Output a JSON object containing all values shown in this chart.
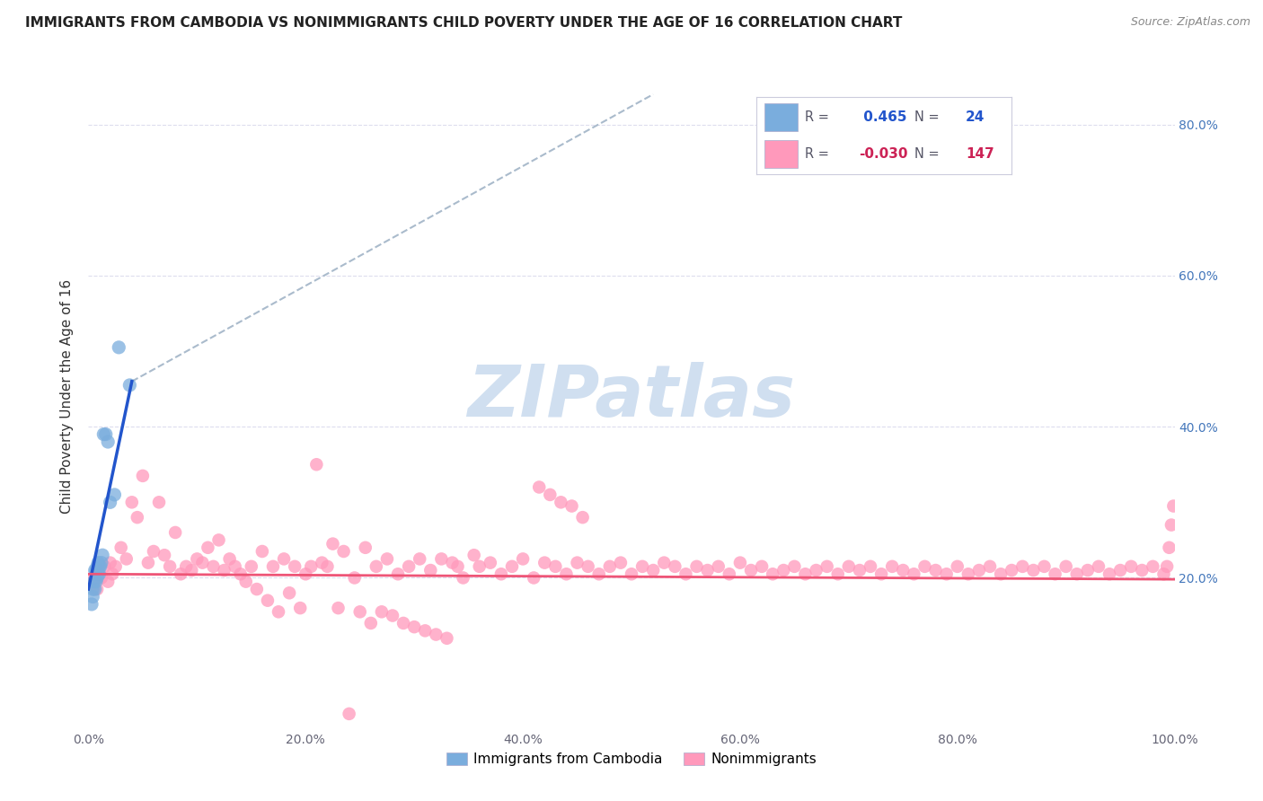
{
  "title": "IMMIGRANTS FROM CAMBODIA VS NONIMMIGRANTS CHILD POVERTY UNDER THE AGE OF 16 CORRELATION CHART",
  "source": "Source: ZipAtlas.com",
  "ylabel": "Child Poverty Under the Age of 16",
  "xlim": [
    0,
    1.0
  ],
  "ylim": [
    0,
    0.88
  ],
  "xticks": [
    0.0,
    0.2,
    0.4,
    0.6,
    0.8,
    1.0
  ],
  "xtick_labels": [
    "0.0%",
    "20.0%",
    "40.0%",
    "60.0%",
    "80.0%",
    "100.0%"
  ],
  "yticks_right": [
    0.2,
    0.4,
    0.6,
    0.8
  ],
  "ytick_labels_right": [
    "20.0%",
    "40.0%",
    "60.0%",
    "80.0%"
  ],
  "R_blue": 0.465,
  "N_blue": 24,
  "R_pink": -0.03,
  "N_pink": 147,
  "blue_scatter_color": "#7AADDD",
  "pink_scatter_color": "#FF99BB",
  "blue_line_color": "#2255CC",
  "pink_line_color": "#EE5577",
  "dashed_line_color": "#AABBCC",
  "legend_text_color_blue": "#2255CC",
  "legend_text_color_pink": "#CC2255",
  "legend_text_color_label": "#555566",
  "watermark_text": "ZIPatlas",
  "watermark_color": "#D0DFF0",
  "grid_color": "#DDDDEE",
  "title_color": "#222222",
  "source_color": "#888888",
  "ylabel_color": "#333333",
  "tick_label_color": "#666677",
  "right_tick_color": "#4477BB",
  "blue_scatter_x": [
    0.003,
    0.004,
    0.004,
    0.005,
    0.006,
    0.006,
    0.007,
    0.007,
    0.008,
    0.008,
    0.009,
    0.009,
    0.01,
    0.01,
    0.011,
    0.012,
    0.013,
    0.014,
    0.016,
    0.018,
    0.02,
    0.024,
    0.028,
    0.038
  ],
  "blue_scatter_y": [
    0.165,
    0.175,
    0.185,
    0.195,
    0.185,
    0.21,
    0.195,
    0.21,
    0.2,
    0.215,
    0.205,
    0.22,
    0.215,
    0.205,
    0.215,
    0.22,
    0.23,
    0.39,
    0.39,
    0.38,
    0.3,
    0.31,
    0.505,
    0.455
  ],
  "blue_line_x0": 0.0,
  "blue_line_y0": 0.185,
  "blue_line_x1": 0.04,
  "blue_line_y1": 0.46,
  "dashed_line_x0": 0.04,
  "dashed_line_y0": 0.46,
  "dashed_line_x1": 0.52,
  "dashed_line_y1": 0.84,
  "pink_line_x0": 0.0,
  "pink_line_y0": 0.205,
  "pink_line_x1": 1.0,
  "pink_line_y1": 0.198,
  "pink_scatter_x": [
    0.005,
    0.008,
    0.01,
    0.012,
    0.015,
    0.018,
    0.02,
    0.022,
    0.025,
    0.03,
    0.035,
    0.04,
    0.045,
    0.05,
    0.06,
    0.065,
    0.07,
    0.08,
    0.09,
    0.1,
    0.11,
    0.12,
    0.13,
    0.14,
    0.15,
    0.16,
    0.17,
    0.18,
    0.19,
    0.2,
    0.215,
    0.225,
    0.235,
    0.245,
    0.255,
    0.265,
    0.275,
    0.285,
    0.295,
    0.305,
    0.315,
    0.325,
    0.335,
    0.34,
    0.345,
    0.355,
    0.36,
    0.37,
    0.38,
    0.39,
    0.4,
    0.41,
    0.42,
    0.43,
    0.44,
    0.45,
    0.46,
    0.47,
    0.48,
    0.49,
    0.5,
    0.51,
    0.52,
    0.53,
    0.54,
    0.55,
    0.56,
    0.57,
    0.58,
    0.59,
    0.6,
    0.61,
    0.62,
    0.63,
    0.64,
    0.65,
    0.66,
    0.67,
    0.68,
    0.69,
    0.7,
    0.71,
    0.72,
    0.73,
    0.74,
    0.75,
    0.76,
    0.77,
    0.78,
    0.79,
    0.8,
    0.81,
    0.82,
    0.83,
    0.84,
    0.85,
    0.86,
    0.87,
    0.88,
    0.89,
    0.9,
    0.91,
    0.92,
    0.93,
    0.94,
    0.95,
    0.96,
    0.97,
    0.98,
    0.99,
    0.993,
    0.995,
    0.997,
    0.999,
    0.055,
    0.075,
    0.085,
    0.095,
    0.105,
    0.115,
    0.125,
    0.135,
    0.145,
    0.155,
    0.165,
    0.175,
    0.185,
    0.195,
    0.205,
    0.21,
    0.22,
    0.23,
    0.24,
    0.25,
    0.26,
    0.27,
    0.28,
    0.29,
    0.3,
    0.31,
    0.32,
    0.33,
    0.415,
    0.425,
    0.435,
    0.445,
    0.455
  ],
  "pink_scatter_y": [
    0.2,
    0.185,
    0.21,
    0.2,
    0.215,
    0.195,
    0.22,
    0.205,
    0.215,
    0.24,
    0.225,
    0.3,
    0.28,
    0.335,
    0.235,
    0.3,
    0.23,
    0.26,
    0.215,
    0.225,
    0.24,
    0.25,
    0.225,
    0.205,
    0.215,
    0.235,
    0.215,
    0.225,
    0.215,
    0.205,
    0.22,
    0.245,
    0.235,
    0.2,
    0.24,
    0.215,
    0.225,
    0.205,
    0.215,
    0.225,
    0.21,
    0.225,
    0.22,
    0.215,
    0.2,
    0.23,
    0.215,
    0.22,
    0.205,
    0.215,
    0.225,
    0.2,
    0.22,
    0.215,
    0.205,
    0.22,
    0.215,
    0.205,
    0.215,
    0.22,
    0.205,
    0.215,
    0.21,
    0.22,
    0.215,
    0.205,
    0.215,
    0.21,
    0.215,
    0.205,
    0.22,
    0.21,
    0.215,
    0.205,
    0.21,
    0.215,
    0.205,
    0.21,
    0.215,
    0.205,
    0.215,
    0.21,
    0.215,
    0.205,
    0.215,
    0.21,
    0.205,
    0.215,
    0.21,
    0.205,
    0.215,
    0.205,
    0.21,
    0.215,
    0.205,
    0.21,
    0.215,
    0.21,
    0.215,
    0.205,
    0.215,
    0.205,
    0.21,
    0.215,
    0.205,
    0.21,
    0.215,
    0.21,
    0.215,
    0.205,
    0.215,
    0.24,
    0.27,
    0.295,
    0.22,
    0.215,
    0.205,
    0.21,
    0.22,
    0.215,
    0.21,
    0.215,
    0.195,
    0.185,
    0.17,
    0.155,
    0.18,
    0.16,
    0.215,
    0.35,
    0.215,
    0.16,
    0.02,
    0.155,
    0.14,
    0.155,
    0.15,
    0.14,
    0.135,
    0.13,
    0.125,
    0.12,
    0.32,
    0.31,
    0.3,
    0.295,
    0.28
  ]
}
